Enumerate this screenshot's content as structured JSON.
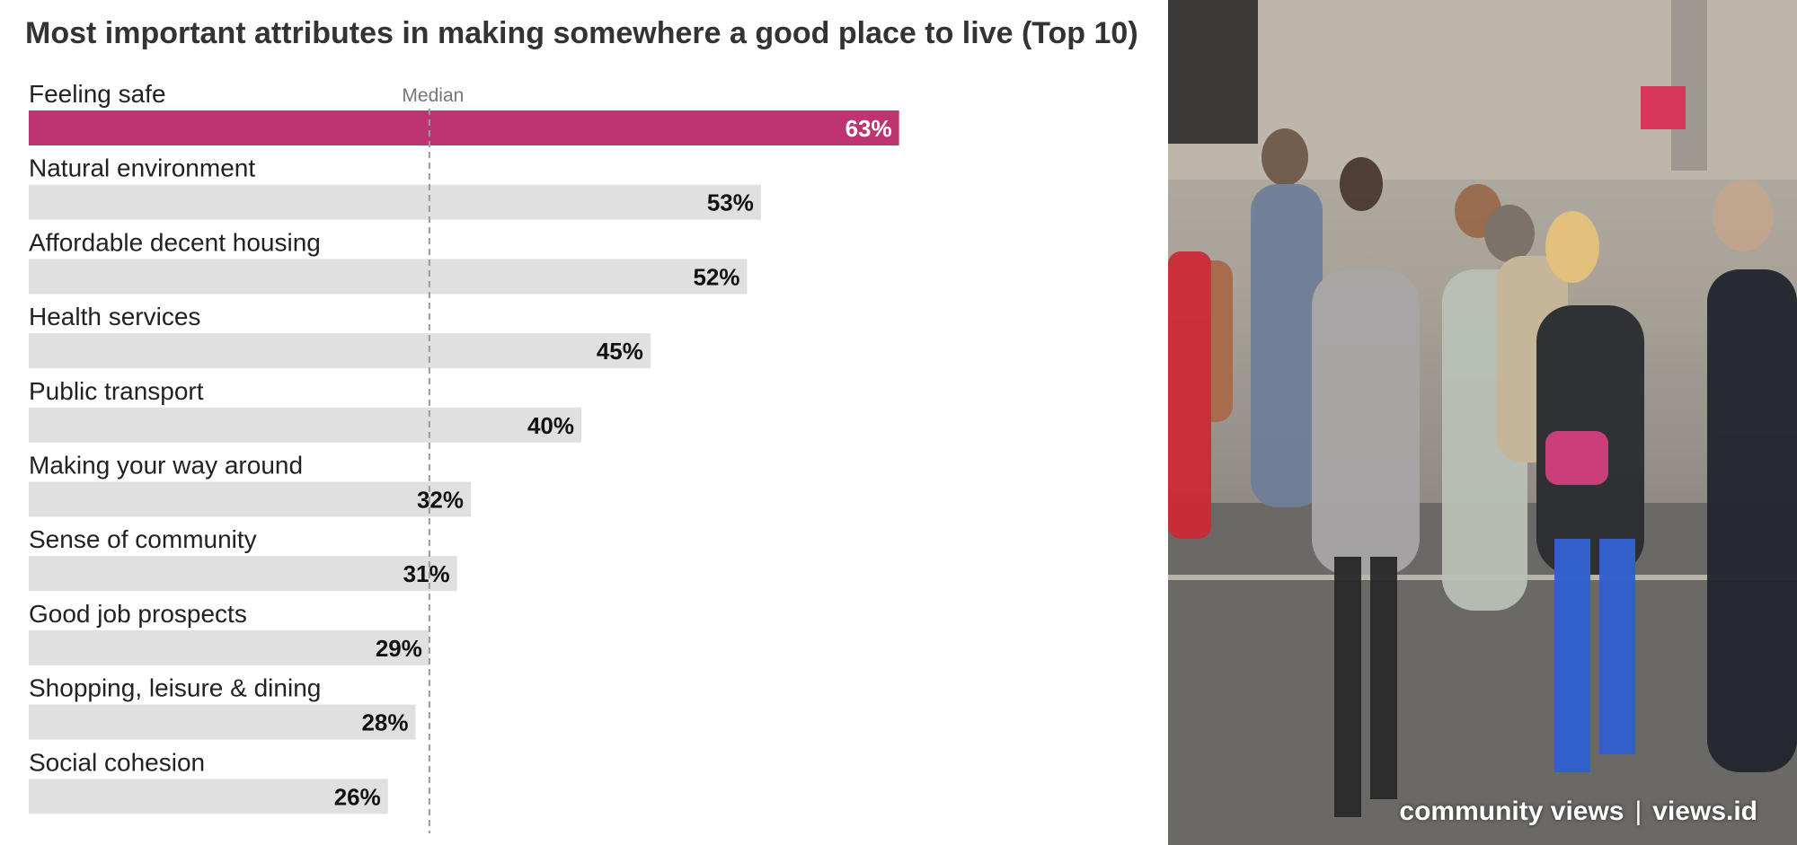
{
  "chart_data": {
    "type": "bar",
    "orientation": "horizontal",
    "title": "Most important attributes in making somewhere a good place to live (Top 10)",
    "categories": [
      "Feeling safe",
      "Natural environment",
      "Affordable decent housing",
      "Health services",
      "Public transport",
      "Making your way around",
      "Sense of community",
      "Good job prospects",
      "Shopping, leisure & dining",
      "Social cohesion"
    ],
    "values": [
      63,
      53,
      52,
      45,
      40,
      32,
      31,
      29,
      28,
      26
    ],
    "value_labels": [
      "63%",
      "53%",
      "52%",
      "45%",
      "40%",
      "32%",
      "31%",
      "29%",
      "28%",
      "26%"
    ],
    "unit": "%",
    "xlim": [
      0,
      80
    ],
    "median_label": "Median",
    "median_value": 29,
    "highlight_index": 0,
    "colors": {
      "highlight": "#be3470",
      "bar": "#e0e0e0",
      "median_line": "#9a9a9a"
    },
    "grid": false,
    "legend": "none"
  },
  "photo": {
    "icon": "crowd-crossing-street-photo",
    "watermark_left": "community views",
    "watermark_separator": "|",
    "watermark_right": "views.id"
  }
}
